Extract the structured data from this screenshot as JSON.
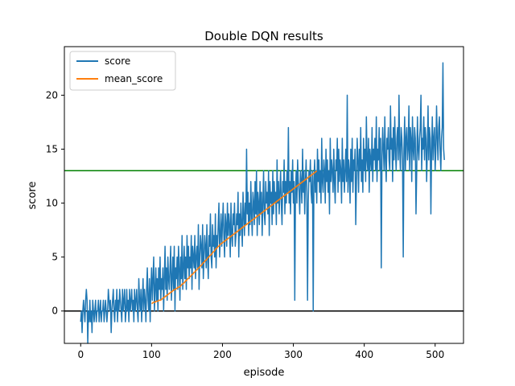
{
  "chart_data": {
    "type": "line",
    "title": "Double DQN results",
    "xlabel": "episode",
    "ylabel": "score",
    "xlim": [
      -23,
      540
    ],
    "ylim": [
      -3.0,
      24.5
    ],
    "xticks": [
      0,
      100,
      200,
      300,
      400,
      500
    ],
    "yticks": [
      0,
      5,
      10,
      15,
      20
    ],
    "grid": false,
    "legend_position": "top-left",
    "reference_lines": [
      {
        "y": 13,
        "color": "#008000"
      },
      {
        "y": 0,
        "color": "#000000"
      }
    ],
    "series": [
      {
        "name": "score",
        "color": "#1f77b4",
        "x_start": 0,
        "values": [
          -1,
          0,
          -2,
          0,
          1,
          0,
          -1,
          1,
          2,
          1,
          -3,
          0,
          -1,
          1,
          -1,
          0,
          -2,
          1,
          0,
          -1,
          0,
          1,
          -1,
          0,
          0,
          1,
          -1,
          0,
          1,
          -1,
          0,
          0,
          1,
          -1,
          0,
          1,
          0,
          -1,
          0,
          2,
          1,
          0,
          1,
          -2,
          0,
          1,
          2,
          0,
          -1,
          1,
          0,
          2,
          -1,
          1,
          0,
          2,
          1,
          0,
          -1,
          2,
          0,
          1,
          2,
          -1,
          0,
          2,
          0,
          1,
          -1,
          2,
          0,
          1,
          2,
          0,
          1,
          -1,
          2,
          0,
          1,
          2,
          0,
          -1,
          3,
          1,
          0,
          2,
          -1,
          1,
          3,
          0,
          2,
          1,
          -1,
          2,
          4,
          1,
          0,
          3,
          -1,
          2,
          4,
          1,
          3,
          5,
          0,
          2,
          4,
          1,
          3,
          0,
          4,
          2,
          5,
          1,
          3,
          2,
          4,
          0,
          3,
          6,
          2,
          4,
          1,
          5,
          3,
          2,
          4,
          6,
          1,
          3,
          5,
          2,
          6,
          0,
          4,
          3,
          5,
          2,
          6,
          4,
          1,
          5,
          3,
          7,
          2,
          4,
          6,
          3,
          5,
          2,
          7,
          4,
          6,
          3,
          5,
          4,
          7,
          2,
          6,
          5,
          4,
          7,
          3,
          5,
          6,
          4,
          8,
          2,
          5,
          7,
          6,
          4,
          8,
          3,
          5,
          7,
          6,
          4,
          8,
          5,
          3,
          7,
          6,
          9,
          5,
          4,
          8,
          6,
          7,
          5,
          9,
          4,
          7,
          6,
          8,
          10,
          5,
          7,
          9,
          6,
          8,
          10,
          7,
          5,
          9,
          8,
          6,
          10,
          7,
          9,
          8,
          5,
          10,
          7,
          6,
          9,
          8,
          10,
          6,
          7,
          9,
          8,
          11,
          5,
          9,
          7,
          10,
          8,
          6,
          11,
          9,
          7,
          10,
          8,
          15,
          9,
          11,
          7,
          10,
          8,
          12,
          9,
          7,
          11,
          10,
          8,
          12,
          9,
          13,
          7,
          11,
          10,
          8,
          12,
          9,
          11,
          7,
          10,
          13,
          9,
          8,
          12,
          10,
          11,
          9,
          13,
          7,
          12,
          10,
          11,
          8,
          13,
          9,
          12,
          10,
          11,
          8,
          14,
          10,
          12,
          9,
          11,
          13,
          10,
          8,
          12,
          11,
          14,
          9,
          12,
          10,
          13,
          11,
          17,
          10,
          12,
          9,
          13,
          11,
          14,
          10,
          12,
          1,
          11,
          13,
          10,
          14,
          12,
          11,
          9,
          13,
          12,
          10,
          15,
          11,
          13,
          9,
          12,
          14,
          11,
          1,
          10,
          13,
          12,
          14,
          11,
          10,
          13,
          0,
          12,
          14,
          11,
          13,
          10,
          15,
          12,
          14,
          11,
          13,
          10,
          16,
          12,
          11,
          14,
          13,
          10,
          15,
          12,
          14,
          11,
          13,
          9,
          16,
          12,
          14,
          13,
          11,
          15,
          12,
          10,
          14,
          13,
          16,
          11,
          15,
          12,
          14,
          13,
          10,
          16,
          12,
          14,
          11,
          13,
          15,
          12,
          20,
          11,
          14,
          13,
          10,
          15,
          12,
          16,
          11,
          14,
          13,
          15,
          8,
          12,
          16,
          14,
          11,
          15,
          13,
          17,
          12,
          14,
          11,
          16,
          13,
          15,
          12,
          18,
          14,
          13,
          16,
          11,
          15,
          14,
          13,
          17,
          12,
          15,
          14,
          16,
          13,
          18,
          12,
          15,
          14,
          17,
          13,
          16,
          4,
          14,
          17,
          15,
          13,
          18,
          14,
          12,
          16,
          15,
          17,
          14,
          13,
          19,
          15,
          16,
          12,
          17,
          14,
          18,
          15,
          13,
          16,
          17,
          14,
          20,
          15,
          13,
          17,
          16,
          14,
          5,
          15,
          18,
          13,
          16,
          17,
          14,
          15,
          19,
          13,
          17,
          16,
          12,
          18,
          15,
          14,
          17,
          16,
          9,
          13,
          18,
          15,
          14,
          16,
          17,
          20,
          13,
          16,
          15,
          18,
          14,
          17,
          16,
          12,
          15,
          19,
          14,
          17,
          16,
          9,
          15,
          18,
          14,
          16,
          17,
          13,
          15,
          19,
          16,
          14,
          17,
          18,
          15,
          13,
          16,
          17,
          23,
          15,
          14
        ]
      },
      {
        "name": "mean_score",
        "color": "#ff7f0e",
        "x_start": 100,
        "values": [
          0.7,
          0.7,
          0.8,
          0.8,
          0.8,
          0.8,
          0.9,
          0.9,
          0.9,
          0.9,
          1.0,
          1.0,
          1.0,
          1.0,
          1.1,
          1.1,
          1.2,
          1.2,
          1.3,
          1.3,
          1.4,
          1.4,
          1.5,
          1.5,
          1.6,
          1.6,
          1.7,
          1.7,
          1.8,
          1.8,
          1.9,
          1.9,
          2.0,
          2.0,
          2.0,
          2.1,
          2.1,
          2.2,
          2.2,
          2.2,
          2.3,
          2.3,
          2.4,
          2.5,
          2.5,
          2.6,
          2.6,
          2.7,
          2.8,
          2.8,
          2.9,
          3.0,
          3.0,
          3.1,
          3.2,
          3.2,
          3.3,
          3.4,
          3.4,
          3.5,
          3.6,
          3.6,
          3.7,
          3.8,
          3.8,
          3.9,
          4.0,
          4.0,
          4.1,
          4.2,
          4.2,
          4.3,
          4.4,
          4.5,
          4.5,
          4.6,
          4.7,
          4.7,
          4.8,
          4.9,
          5.0,
          5.0,
          5.1,
          5.2,
          5.2,
          5.3,
          5.4,
          5.5,
          5.5,
          5.6,
          5.7,
          5.8,
          5.8,
          5.9,
          6.0,
          6.0,
          6.1,
          6.2,
          6.2,
          6.3,
          6.3,
          6.4,
          6.4,
          6.5,
          6.5,
          6.6,
          6.6,
          6.7,
          6.7,
          6.8,
          6.8,
          6.9,
          6.9,
          7.0,
          7.0,
          7.1,
          7.1,
          7.2,
          7.2,
          7.3,
          7.3,
          7.4,
          7.4,
          7.5,
          7.5,
          7.6,
          7.6,
          7.7,
          7.7,
          7.8,
          7.8,
          7.9,
          7.9,
          8.0,
          8.0,
          8.1,
          8.1,
          8.2,
          8.2,
          8.3,
          8.3,
          8.4,
          8.4,
          8.5,
          8.5,
          8.6,
          8.6,
          8.7,
          8.7,
          8.8,
          8.8,
          8.9,
          8.9,
          9.0,
          9.0,
          9.1,
          9.1,
          9.2,
          9.2,
          9.3,
          9.3,
          9.4,
          9.4,
          9.5,
          9.5,
          9.6,
          9.6,
          9.7,
          9.7,
          9.8,
          9.8,
          9.9,
          9.9,
          10.0,
          10.0,
          10.1,
          10.1,
          10.2,
          10.2,
          10.3,
          10.3,
          10.4,
          10.4,
          10.5,
          10.5,
          10.6,
          10.6,
          10.7,
          10.7,
          10.8,
          10.8,
          10.9,
          10.9,
          11.0,
          11.0,
          11.1,
          11.1,
          11.2,
          11.2,
          11.3,
          11.3,
          11.4,
          11.4,
          11.5,
          11.5,
          11.6,
          11.6,
          11.7,
          11.7,
          11.8,
          11.8,
          11.9,
          11.9,
          12.0,
          12.0,
          12.1,
          12.1,
          12.2,
          12.2,
          12.3,
          12.3,
          12.4,
          12.4,
          12.5,
          12.5,
          12.6,
          12.6,
          12.7,
          12.7,
          12.8,
          12.8,
          12.9,
          12.9,
          13.0
        ]
      }
    ]
  }
}
